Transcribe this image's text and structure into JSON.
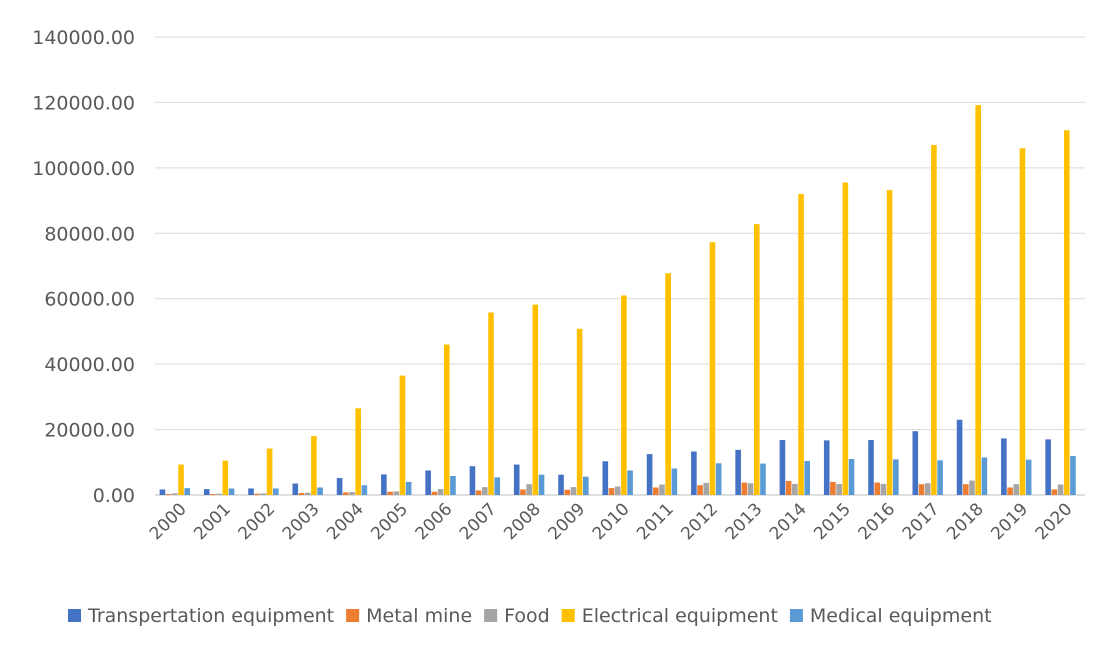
{
  "chart_data": {
    "type": "bar",
    "title": "",
    "xlabel": "",
    "ylabel": "",
    "ylim": [
      0,
      140000
    ],
    "y_ticks": [
      "0.00",
      "20000.00",
      "40000.00",
      "60000.00",
      "80000.00",
      "100000.00",
      "120000.00",
      "140000.00"
    ],
    "grid": true,
    "legend_position": "bottom",
    "categories": [
      "2000",
      "2001",
      "2002",
      "2003",
      "2004",
      "2005",
      "2006",
      "2007",
      "2008",
      "2009",
      "2010",
      "2011",
      "2012",
      "2013",
      "2014",
      "2015",
      "2016",
      "2017",
      "2018",
      "2019",
      "2020"
    ],
    "series": [
      {
        "name": "Transpertation equipment",
        "color": "#4472C4",
        "values": [
          1700,
          1800,
          2000,
          3500,
          5200,
          6300,
          7500,
          8800,
          9300,
          6200,
          10300,
          12500,
          13300,
          13800,
          16800,
          16700,
          16800,
          19500,
          23000,
          17300,
          17000
        ]
      },
      {
        "name": "Metal mine",
        "color": "#ED7D31",
        "values": [
          300,
          300,
          400,
          600,
          800,
          1000,
          1000,
          1400,
          1700,
          1600,
          2100,
          2300,
          3000,
          3800,
          4300,
          4000,
          3800,
          3300,
          3300,
          2300,
          1700
        ]
      },
      {
        "name": "Food",
        "color": "#A5A5A5",
        "values": [
          500,
          400,
          500,
          700,
          900,
          1100,
          1800,
          2400,
          3300,
          2400,
          2600,
          3200,
          3700,
          3600,
          3400,
          3400,
          3400,
          3600,
          4400,
          3300,
          3200
        ]
      },
      {
        "name": "Electrical equipment",
        "color": "#FFC000",
        "values": [
          9300,
          10500,
          14200,
          18000,
          26500,
          36500,
          46000,
          55800,
          58200,
          50800,
          61000,
          67800,
          77300,
          82800,
          92000,
          95500,
          93200,
          107000,
          119200,
          106000,
          111500
        ]
      },
      {
        "name": "Medical equipment",
        "color": "#5B9BD5",
        "values": [
          2100,
          2000,
          2000,
          2300,
          3000,
          4000,
          5800,
          5400,
          6200,
          5600,
          7500,
          8100,
          9700,
          9600,
          10400,
          11000,
          10900,
          10600,
          11500,
          10800,
          11900
        ]
      }
    ]
  }
}
